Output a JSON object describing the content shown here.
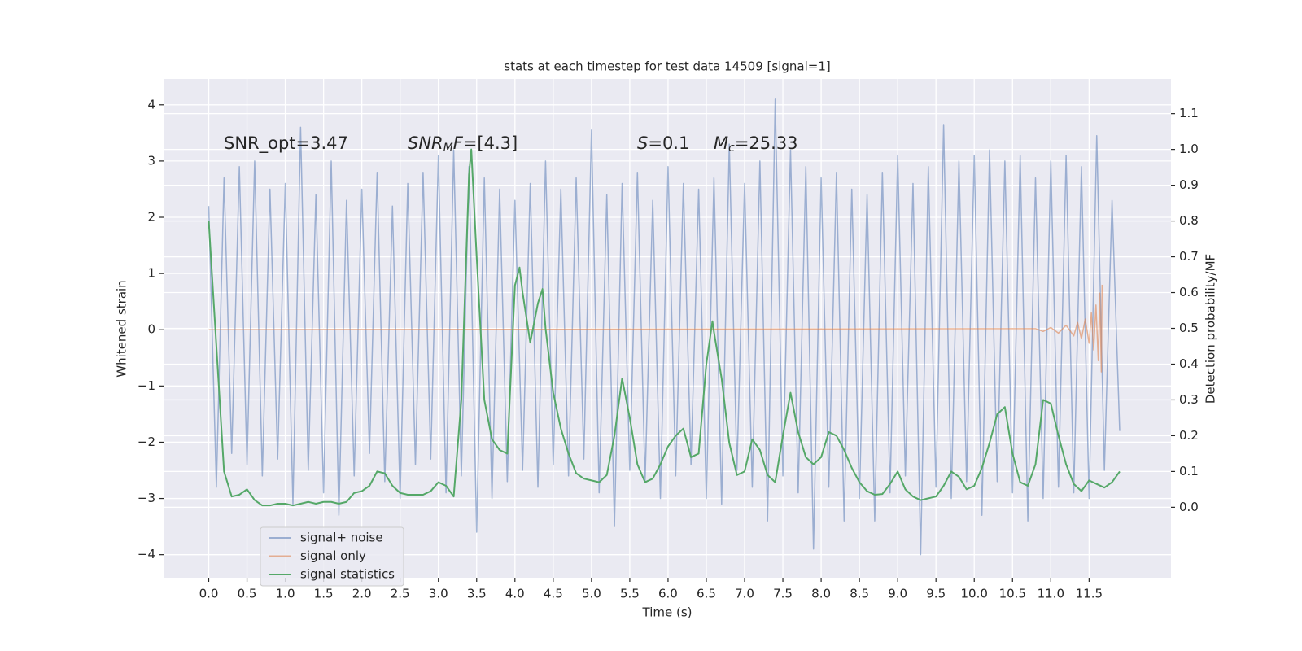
{
  "chart_data": {
    "type": "line",
    "title": "stats at each timestep for test data 14509 [signal=1]",
    "xlabel": "Time (s)",
    "ylabel": "Whitened strain",
    "y2label": "Detection probability/MF",
    "xlim": [
      -0.59,
      12.57
    ],
    "ylim": [
      -4.41,
      4.46
    ],
    "y2lim": [
      -0.197,
      1.197
    ],
    "xticks": [
      {
        "value": 0,
        "label": "0.0"
      },
      0.5,
      {
        "value": 1,
        "label": "1.0"
      },
      1.5,
      {
        "value": 2,
        "label": "2.0"
      },
      2.5,
      {
        "value": 3,
        "label": "3.0"
      },
      3.5,
      {
        "value": 4,
        "label": "4.0"
      },
      4.5,
      {
        "value": 5,
        "label": "5.0"
      },
      5.5,
      {
        "value": 6,
        "label": "6.0"
      },
      6.5,
      {
        "value": 7,
        "label": "7.0"
      },
      7.5,
      {
        "value": 8,
        "label": "8.0"
      },
      8.5,
      {
        "value": 9,
        "label": "9.0"
      },
      9.5,
      {
        "value": 10,
        "label": "10.0"
      },
      10.5,
      {
        "value": 11,
        "label": "11.0"
      },
      11.5
    ],
    "yticks": [
      -4,
      -3,
      -2,
      -1,
      0,
      1,
      2,
      3,
      4
    ],
    "y2ticks": [
      {
        "value": 0,
        "label": "0.0"
      },
      0.1,
      0.2,
      0.3,
      0.4,
      0.5,
      0.6,
      0.7,
      0.8,
      0.9,
      {
        "value": 1,
        "label": "1.0"
      },
      1.1
    ],
    "grid": true,
    "legend": "lower left",
    "annotations": [
      [
        {
          "text": "SNR_opt=3.47"
        }
      ],
      [
        {
          "text": "SNR",
          "style": "italic"
        },
        {
          "text": "M",
          "style": "sub"
        },
        {
          "text": "F",
          "style": "italic"
        },
        {
          "text": "=[4.3]"
        }
      ],
      [
        {
          "text": "S",
          "style": "italic"
        },
        {
          "text": "=0.1"
        }
      ],
      [
        {
          "text": "M",
          "style": "italic"
        },
        {
          "text": "c",
          "style": "sub"
        },
        {
          "text": "=25.33"
        }
      ]
    ],
    "series": [
      {
        "name": "signal+ noise",
        "color": "#4c72b0",
        "opacity": 0.5,
        "x": [
          0.0,
          0.1,
          0.2,
          0.3,
          0.4,
          0.5,
          0.6,
          0.7,
          0.8,
          0.9,
          1.0,
          1.1,
          1.2,
          1.3,
          1.4,
          1.5,
          1.6,
          1.7,
          1.8,
          1.9,
          2.0,
          2.1,
          2.2,
          2.3,
          2.4,
          2.5,
          2.6,
          2.7,
          2.8,
          2.9,
          3.0,
          3.1,
          3.2,
          3.3,
          3.4,
          3.5,
          3.6,
          3.7,
          3.8,
          3.9,
          4.0,
          4.1,
          4.2,
          4.3,
          4.4,
          4.5,
          4.6,
          4.7,
          4.8,
          4.9,
          5.0,
          5.1,
          5.2,
          5.3,
          5.4,
          5.5,
          5.6,
          5.7,
          5.8,
          5.9,
          6.0,
          6.1,
          6.2,
          6.3,
          6.4,
          6.5,
          6.6,
          6.7,
          6.8,
          6.9,
          7.0,
          7.1,
          7.2,
          7.3,
          7.4,
          7.5,
          7.6,
          7.7,
          7.8,
          7.9,
          8.0,
          8.1,
          8.2,
          8.3,
          8.4,
          8.5,
          8.6,
          8.7,
          8.8,
          8.9,
          9.0,
          9.1,
          9.2,
          9.3,
          9.4,
          9.5,
          9.6,
          9.7,
          9.8,
          9.9,
          10.0,
          10.1,
          10.2,
          10.3,
          10.4,
          10.5,
          10.6,
          10.7,
          10.8,
          10.9,
          11.0,
          11.1,
          11.2,
          11.3,
          11.4,
          11.5,
          11.6,
          11.7,
          11.8,
          11.9
        ],
        "values": [
          2.2,
          -2.8,
          2.7,
          -2.2,
          2.9,
          -2.4,
          3.0,
          -2.6,
          2.5,
          -2.3,
          2.6,
          -3.1,
          3.6,
          -2.5,
          2.4,
          -2.9,
          3.0,
          -3.3,
          2.3,
          -2.6,
          2.5,
          -2.2,
          2.8,
          -2.7,
          2.2,
          -3.0,
          2.6,
          -2.4,
          2.8,
          -2.3,
          3.1,
          -2.9,
          3.2,
          -2.6,
          2.9,
          -3.6,
          2.7,
          -3.0,
          2.5,
          -2.7,
          2.3,
          -2.5,
          2.6,
          -2.8,
          3.0,
          -2.4,
          2.5,
          -2.6,
          2.7,
          -2.3,
          3.55,
          -2.9,
          2.4,
          -3.5,
          2.6,
          -2.5,
          2.8,
          -2.7,
          2.3,
          -3.0,
          2.9,
          -2.6,
          2.6,
          -2.4,
          2.5,
          -3.0,
          2.7,
          -3.1,
          3.3,
          -2.5,
          2.6,
          -2.8,
          3.0,
          -3.4,
          4.1,
          -2.6,
          3.2,
          -2.9,
          2.9,
          -3.9,
          2.7,
          -2.8,
          2.8,
          -3.4,
          2.5,
          -3.0,
          2.4,
          -3.4,
          2.8,
          -2.9,
          3.1,
          -2.6,
          2.6,
          -4.0,
          2.9,
          -2.8,
          3.65,
          -3.0,
          3.0,
          -2.7,
          3.1,
          -3.3,
          3.2,
          -2.7,
          3.0,
          -2.9,
          3.1,
          -3.4,
          2.7,
          -3.0,
          3.0,
          -2.8,
          3.1,
          -2.9,
          2.9,
          -3.0,
          3.45,
          -2.5,
          2.3,
          -1.8
        ]
      },
      {
        "name": "signal only",
        "color": "#dd8452",
        "opacity": 0.6,
        "x": [
          0,
          10.8,
          10.9,
          11.0,
          11.1,
          11.2,
          11.3,
          11.35,
          11.4,
          11.45,
          11.5,
          11.53,
          11.56,
          11.59,
          11.62,
          11.64,
          11.66,
          11.67
        ],
        "values": [
          0,
          0.02,
          -0.03,
          0.04,
          -0.06,
          0.08,
          -0.11,
          0.13,
          -0.16,
          0.19,
          -0.24,
          0.3,
          -0.36,
          0.44,
          -0.55,
          0.65,
          -0.75,
          0.8
        ]
      },
      {
        "name": "signal statistics",
        "color": "#55a868",
        "opacity": 1,
        "axis": "y2",
        "x": [
          0.0,
          0.1,
          0.2,
          0.3,
          0.4,
          0.5,
          0.6,
          0.7,
          0.8,
          0.9,
          1.0,
          1.1,
          1.2,
          1.3,
          1.4,
          1.5,
          1.6,
          1.7,
          1.8,
          1.9,
          2.0,
          2.1,
          2.2,
          2.3,
          2.4,
          2.5,
          2.6,
          2.7,
          2.8,
          2.9,
          3.0,
          3.1,
          3.2,
          3.3,
          3.4,
          3.43,
          3.5,
          3.6,
          3.7,
          3.8,
          3.9,
          4.0,
          4.06,
          4.1,
          4.2,
          4.3,
          4.36,
          4.4,
          4.5,
          4.6,
          4.7,
          4.8,
          4.9,
          5.0,
          5.1,
          5.2,
          5.3,
          5.4,
          5.5,
          5.6,
          5.7,
          5.8,
          5.9,
          6.0,
          6.1,
          6.2,
          6.3,
          6.4,
          6.5,
          6.58,
          6.6,
          6.7,
          6.8,
          6.9,
          7.0,
          7.1,
          7.2,
          7.3,
          7.4,
          7.5,
          7.6,
          7.7,
          7.8,
          7.9,
          8.0,
          8.1,
          8.2,
          8.3,
          8.4,
          8.5,
          8.6,
          8.7,
          8.8,
          8.9,
          9.0,
          9.1,
          9.2,
          9.3,
          9.4,
          9.5,
          9.6,
          9.7,
          9.8,
          9.9,
          10.0,
          10.1,
          10.2,
          10.3,
          10.4,
          10.5,
          10.6,
          10.7,
          10.8,
          10.9,
          11.0,
          11.1,
          11.2,
          11.3,
          11.4,
          11.5,
          11.6,
          11.7,
          11.8,
          11.9
        ],
        "values": [
          0.8,
          0.45,
          0.1,
          0.03,
          0.035,
          0.05,
          0.02,
          0.005,
          0.005,
          0.01,
          0.01,
          0.005,
          0.01,
          0.015,
          0.01,
          0.015,
          0.015,
          0.01,
          0.015,
          0.04,
          0.045,
          0.06,
          0.1,
          0.095,
          0.06,
          0.04,
          0.035,
          0.035,
          0.035,
          0.045,
          0.07,
          0.06,
          0.03,
          0.3,
          0.93,
          1.0,
          0.7,
          0.3,
          0.19,
          0.16,
          0.15,
          0.62,
          0.67,
          0.6,
          0.46,
          0.57,
          0.61,
          0.5,
          0.32,
          0.22,
          0.15,
          0.095,
          0.08,
          0.075,
          0.07,
          0.09,
          0.2,
          0.36,
          0.25,
          0.12,
          0.07,
          0.08,
          0.12,
          0.17,
          0.2,
          0.22,
          0.14,
          0.15,
          0.4,
          0.52,
          0.49,
          0.36,
          0.18,
          0.09,
          0.1,
          0.19,
          0.16,
          0.09,
          0.07,
          0.2,
          0.32,
          0.21,
          0.14,
          0.12,
          0.14,
          0.21,
          0.2,
          0.16,
          0.11,
          0.07,
          0.045,
          0.035,
          0.037,
          0.065,
          0.1,
          0.05,
          0.03,
          0.02,
          0.025,
          0.03,
          0.06,
          0.1,
          0.085,
          0.05,
          0.06,
          0.11,
          0.18,
          0.26,
          0.28,
          0.15,
          0.07,
          0.06,
          0.12,
          0.3,
          0.29,
          0.2,
          0.12,
          0.065,
          0.045,
          0.075,
          0.065,
          0.055,
          0.07,
          0.1
        ]
      }
    ]
  }
}
